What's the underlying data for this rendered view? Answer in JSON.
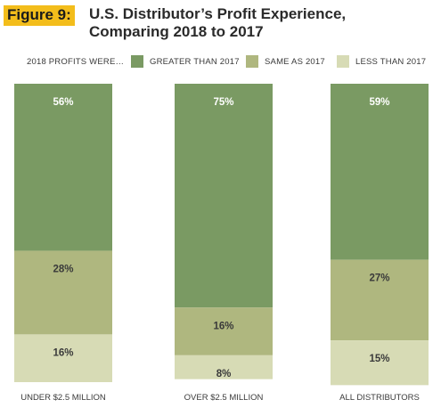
{
  "figure": {
    "badge": "Figure 9:",
    "title_line1": "U.S. Distributor’s Profit Experience,",
    "title_line2": "Comparing 2018 to 2017"
  },
  "colors": {
    "greater": "#7a9a63",
    "same": "#afb77f",
    "less": "#d7dbb5",
    "badge": "#f3bd1b"
  },
  "legend": {
    "prefix": "2018 PROFITS WERE…",
    "items": [
      {
        "label": "GREATER THAN 2017",
        "color": "#7a9a63"
      },
      {
        "label": "SAME AS 2017",
        "color": "#afb77f"
      },
      {
        "label": "LESS THAN 2017",
        "color": "#d7dbb5"
      }
    ]
  },
  "chart_data": {
    "type": "bar",
    "stacked": true,
    "categories": [
      "UNDER $2.5 MILLION",
      "OVER $2.5 MILLION",
      "ALL DISTRIBUTORS"
    ],
    "series": [
      {
        "name": "GREATER THAN 2017",
        "values": [
          56,
          75,
          59
        ],
        "labels": [
          "56%",
          "75%",
          "59%"
        ]
      },
      {
        "name": "SAME AS 2017",
        "values": [
          28,
          16,
          27
        ],
        "labels": [
          "28%",
          "16%",
          "27%"
        ]
      },
      {
        "name": "LESS THAN 2017",
        "values": [
          16,
          8,
          15
        ],
        "labels": [
          "16%",
          "8%",
          "15%"
        ]
      }
    ],
    "ylim": [
      0,
      100
    ],
    "legend_position": "top"
  }
}
